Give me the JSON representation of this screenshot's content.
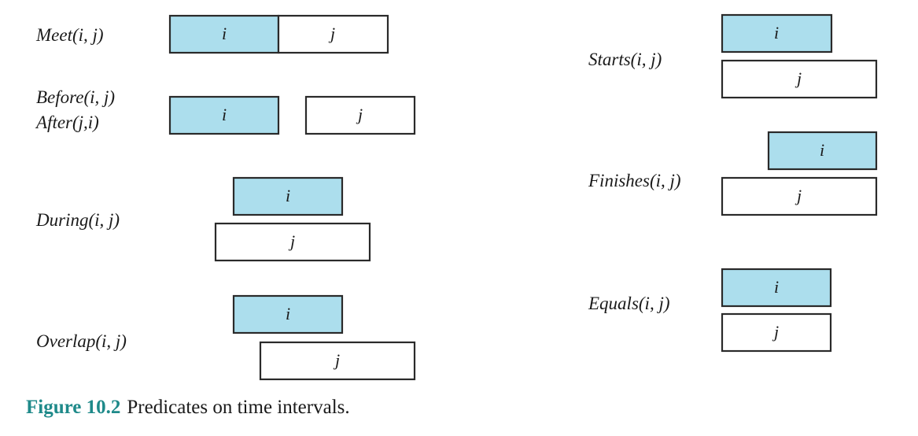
{
  "colors": {
    "i_fill": "#acdeed",
    "j_fill": "#ffffff",
    "stroke": "#2a2a2a",
    "caption_accent": "#1f8a8a"
  },
  "predicates": [
    {
      "id": "meet",
      "labels": [
        "Meet(i, j)"
      ],
      "boxes": [
        "i",
        "j"
      ]
    },
    {
      "id": "before",
      "labels": [
        "Before(i, j)",
        "After(j,i)"
      ],
      "boxes": [
        "i",
        "j"
      ]
    },
    {
      "id": "during",
      "labels": [
        "During(i, j)"
      ],
      "boxes": [
        "i",
        "j"
      ]
    },
    {
      "id": "overlap",
      "labels": [
        "Overlap(i, j)"
      ],
      "boxes": [
        "i",
        "j"
      ]
    },
    {
      "id": "starts",
      "labels": [
        "Starts(i, j)"
      ],
      "boxes": [
        "i",
        "j"
      ]
    },
    {
      "id": "finishes",
      "labels": [
        "Finishes(i, j)"
      ],
      "boxes": [
        "i",
        "j"
      ]
    },
    {
      "id": "equals",
      "labels": [
        "Equals(i, j)"
      ],
      "boxes": [
        "i",
        "j"
      ]
    }
  ],
  "caption": {
    "number": "Figure 10.2",
    "text": "Predicates on time intervals."
  }
}
